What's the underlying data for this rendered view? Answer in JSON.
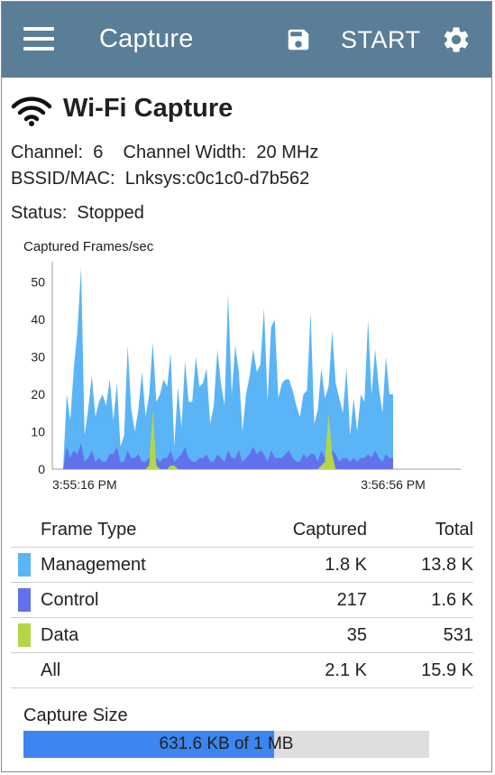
{
  "app_bar": {
    "title": "Capture",
    "start_label": "START"
  },
  "heading": "Wi-Fi Capture",
  "info": {
    "channel_label": "Channel:",
    "channel_value": "6",
    "width_label": "Channel Width:",
    "width_value": "20 MHz",
    "bssid_label": "BSSID/MAC:",
    "bssid_value": "Lnksys:c0c1c0-d7b562",
    "status_label": "Status:",
    "status_value": "Stopped"
  },
  "chart_data": {
    "type": "area",
    "title": "Captured Frames/sec",
    "y_ticks": [
      0,
      10,
      20,
      30,
      40,
      50
    ],
    "ylim": [
      0,
      55
    ],
    "x_ticks": [
      "3:55:16 PM",
      "3:56:56 PM"
    ],
    "grid": false,
    "series": [
      {
        "name": "Management",
        "color": "#5ab4f5",
        "values": [
          0,
          0,
          20,
          13,
          27,
          37,
          54,
          9,
          16,
          25,
          14,
          18,
          20,
          17,
          24,
          13,
          23,
          6,
          9,
          33,
          16,
          10,
          16,
          26,
          14,
          20,
          34,
          18,
          20,
          24,
          22,
          31,
          6,
          22,
          11,
          29,
          18,
          18,
          30,
          22,
          23,
          27,
          12,
          17,
          32,
          23,
          17,
          47,
          20,
          33,
          26,
          10,
          20,
          25,
          32,
          26,
          28,
          43,
          18,
          38,
          40,
          19,
          23,
          24,
          24,
          21,
          17,
          14,
          20,
          21,
          42,
          12,
          16,
          27,
          19,
          22,
          37,
          23,
          19,
          15,
          27,
          9,
          19,
          10,
          20,
          18,
          40,
          20,
          32,
          22,
          15,
          30,
          20,
          20
        ]
      },
      {
        "name": "Control",
        "color": "#6272ec",
        "values": [
          0,
          0,
          6,
          3,
          5,
          4,
          7,
          2,
          3,
          5,
          2,
          3,
          2,
          2,
          4,
          4,
          6,
          2,
          2,
          5,
          3,
          3,
          4,
          2,
          2,
          3,
          4,
          3,
          2,
          3,
          3,
          5,
          2,
          3,
          4,
          6,
          3,
          2,
          2,
          3,
          3,
          4,
          2,
          2,
          4,
          3,
          2,
          5,
          3,
          3,
          5,
          2,
          3,
          4,
          6,
          4,
          5,
          4,
          2,
          5,
          3,
          3,
          3,
          4,
          5,
          3,
          2,
          2,
          4,
          3,
          4,
          4,
          2,
          5,
          3,
          3,
          5,
          4,
          2,
          3,
          3,
          2,
          3,
          2,
          3,
          3,
          4,
          3,
          5,
          3,
          2,
          4,
          3,
          3
        ]
      },
      {
        "name": "Data",
        "color": "#b2d648",
        "values": [
          0,
          0,
          0,
          0,
          0,
          0,
          0,
          0,
          0,
          0,
          0,
          0,
          0,
          0,
          0,
          0,
          0,
          0,
          0,
          0,
          0,
          0,
          0,
          0,
          0,
          1,
          16,
          1,
          0,
          0,
          0,
          1,
          1,
          0,
          0,
          0,
          0,
          0,
          0,
          0,
          0,
          0,
          0,
          0,
          0,
          0,
          0,
          0,
          0,
          0,
          0,
          0,
          0,
          0,
          0,
          0,
          0,
          0,
          0,
          0,
          0,
          0,
          0,
          0,
          0,
          0,
          0,
          0,
          0,
          0,
          0,
          0,
          0,
          1,
          2,
          15,
          4,
          0,
          0,
          0,
          0,
          0,
          0,
          0,
          0,
          0,
          0,
          0,
          0,
          0,
          0,
          0,
          0,
          0
        ]
      }
    ]
  },
  "table": {
    "headers": [
      "Frame Type",
      "Captured",
      "Total"
    ],
    "rows": [
      {
        "type": "Management",
        "captured": "1.8 K",
        "total": "13.8 K",
        "color": "#5ab4f5"
      },
      {
        "type": "Control",
        "captured": "217",
        "total": "1.6 K",
        "color": "#6272ec"
      },
      {
        "type": "Data",
        "captured": "35",
        "total": "531",
        "color": "#b2d648"
      },
      {
        "type": "All",
        "captured": "2.1 K",
        "total": "15.9 K"
      }
    ]
  },
  "capture_size": {
    "label": "Capture Size",
    "text": "631.6 KB of 1 MB",
    "fraction": 0.617
  }
}
